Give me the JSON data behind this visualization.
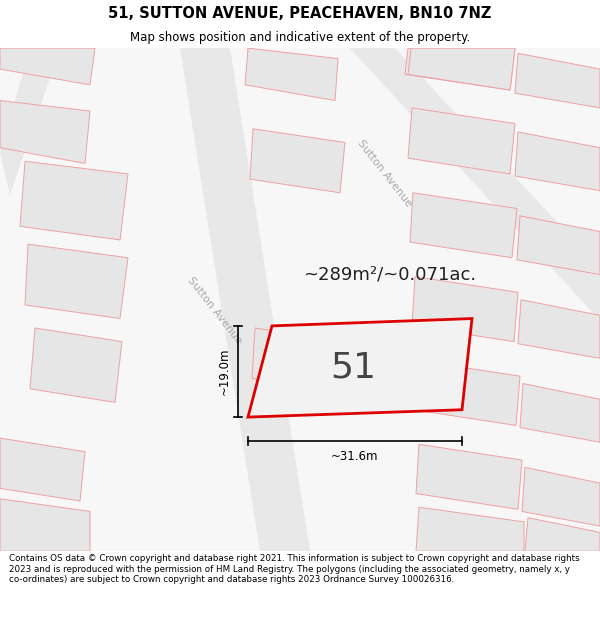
{
  "title": "51, SUTTON AVENUE, PEACEHAVEN, BN10 7NZ",
  "subtitle": "Map shows position and indicative extent of the property.",
  "area_label": "~289m²/~0.071ac.",
  "plot_number": "51",
  "dim_width": "~31.6m",
  "dim_height": "~19.0m",
  "footer": "Contains OS data © Crown copyright and database right 2021. This information is subject to Crown copyright and database rights 2023 and is reproduced with the permission of HM Land Registry. The polygons (including the associated geometry, namely x, y co-ordinates) are subject to Crown copyright and database rights 2023 Ordnance Survey 100026316.",
  "map_bg_color": "#f7f7f7",
  "street_color": "#e8e8e8",
  "block_bg": "#efefef",
  "plot_fill": "#f2f2f2",
  "plot_border": "#dd0000",
  "nb_fill": "#e6e6e6",
  "nb_border": "#f0a0a0",
  "nb_border_dark": "#c8c8c8",
  "street_label_color": "#aaaaaa",
  "street_label1": "Sutton Avenue",
  "street_label2": "Sutton Avenue"
}
